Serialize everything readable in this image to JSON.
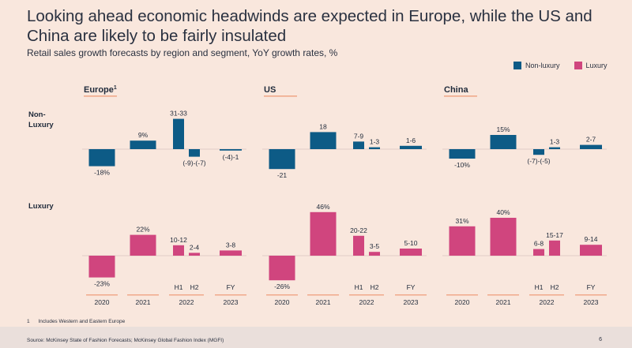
{
  "title": "Looking ahead economic headwinds are expected in Europe, while the US and China are likely to be fairly insulated",
  "subtitle": "Retail sales growth forecasts by region and segment, YoY growth rates, %",
  "legend": [
    {
      "label": "Non-luxury",
      "color": "#0d5b86"
    },
    {
      "label": "Luxury",
      "color": "#d0457e"
    }
  ],
  "footnote": {
    "number": "1",
    "text": "Includes Western and Eastern Europe"
  },
  "source": "Source: McKinsey State of Fashion Forecasts; McKinsey Global Fashion Index (MGFI)",
  "page_number": "6",
  "row_labels": [
    "Non-\nLuxury",
    "Luxury"
  ],
  "chart_data": {
    "type": "bar",
    "title": "Retail sales growth forecasts by region and segment, YoY growth rates, %",
    "periods": [
      "2020",
      "2021",
      "2022 H1",
      "2022 H2",
      "2023 FY"
    ],
    "year_labels": [
      "2020",
      "2021",
      "2022",
      "2022",
      "2023"
    ],
    "sub_labels": [
      "",
      "",
      "H1",
      "H2",
      "FY"
    ],
    "colors": {
      "Non-luxury": "#0d5b86",
      "Luxury": "#d0457e"
    },
    "regions": [
      {
        "name": "Europe",
        "superscript": "1",
        "non_luxury": {
          "values": [
            -18,
            9,
            32,
            -8,
            -1.5
          ],
          "labels": [
            "-18%",
            "9%",
            "31-33",
            "(-9)-(-7)",
            "(-4)-1"
          ]
        },
        "luxury": {
          "values": [
            -23,
            22,
            11,
            3,
            5.5
          ],
          "labels": [
            "-23%",
            "22%",
            "10-12",
            "2-4",
            "3-8"
          ]
        }
      },
      {
        "name": "US",
        "superscript": "",
        "non_luxury": {
          "values": [
            -21,
            18,
            8,
            2,
            3.5
          ],
          "labels": [
            "-21",
            "18",
            "7-9",
            "1-3",
            "1-6"
          ]
        },
        "luxury": {
          "values": [
            -26,
            46,
            21,
            4,
            7.5
          ],
          "labels": [
            "-26%",
            "46%",
            "20-22",
            "3-5",
            "5-10"
          ]
        }
      },
      {
        "name": "China",
        "superscript": "",
        "non_luxury": {
          "values": [
            -10,
            15,
            -6,
            2,
            4.5
          ],
          "labels": [
            "-10%",
            "15%",
            "(-7)-(-5)",
            "1-3",
            "2-7"
          ]
        },
        "luxury": {
          "values": [
            31,
            40,
            7,
            16,
            11.5
          ],
          "labels": [
            "31%",
            "40%",
            "6-8",
            "15-17",
            "9-14"
          ]
        }
      }
    ]
  }
}
